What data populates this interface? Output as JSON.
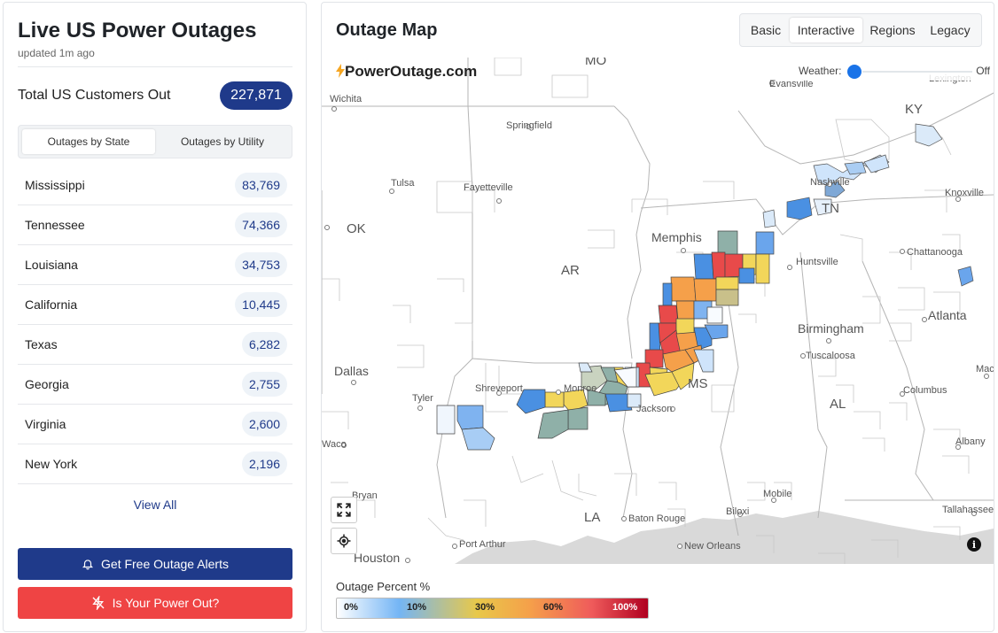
{
  "sidebar": {
    "title": "Live US Power Outages",
    "updated": "updated 1m ago",
    "total_label": "Total US Customers Out",
    "total_value": "227,871",
    "tabs": [
      {
        "label": "Outages by State",
        "active": true
      },
      {
        "label": "Outages by Utility",
        "active": false
      }
    ],
    "states": [
      {
        "name": "Mississippi",
        "count": "83,769"
      },
      {
        "name": "Tennessee",
        "count": "74,366"
      },
      {
        "name": "Louisiana",
        "count": "34,753"
      },
      {
        "name": "California",
        "count": "10,445"
      },
      {
        "name": "Texas",
        "count": "6,282"
      },
      {
        "name": "Georgia",
        "count": "2,755"
      },
      {
        "name": "Virginia",
        "count": "2,600"
      },
      {
        "name": "New York",
        "count": "2,196"
      }
    ],
    "view_all": "View All",
    "alerts_button": "Get Free Outage Alerts",
    "power_out_button": "Is Your Power Out?"
  },
  "map": {
    "title": "Outage Map",
    "modes": [
      {
        "label": "Basic",
        "active": false
      },
      {
        "label": "Interactive",
        "active": true
      },
      {
        "label": "Regions",
        "active": false
      },
      {
        "label": "Legacy",
        "active": false
      }
    ],
    "logo": "PowerOutage.com",
    "weather_label": "Weather:",
    "weather_state": "Off",
    "state_labels": {
      "mo": "MO",
      "ky": "KY",
      "ok": "OK",
      "ar": "AR",
      "tn": "TN",
      "ms": "MS",
      "al": "AL",
      "la": "LA"
    },
    "city_labels": {
      "wichita": "Wichita",
      "springfield": "Springfield",
      "evansville": "Evansville",
      "lexington": "Lexington",
      "tulsa": "Tulsa",
      "fayetteville": "Fayetteville",
      "nashville": "Nashville",
      "knoxville": "Knoxville",
      "memphis": "Memphis",
      "huntsville": "Huntsville",
      "chattanooga": "Chattanooga",
      "atlanta": "Atlanta",
      "birmingham": "Birmingham",
      "tuscaloosa": "Tuscaloosa",
      "dallas": "Dallas",
      "shreveport": "Shreveport",
      "tyler": "Tyler",
      "monroe": "Monroe",
      "jackson": "Jackson",
      "columbus": "Columbus",
      "macon": "Mac",
      "albany": "Albany",
      "waco": "Waco",
      "bryan": "Bryan",
      "mobile": "Mobile",
      "biloxi": "Biloxi",
      "tallahassee": "Tallahassee",
      "baton_rouge": "Baton Rouge",
      "port_arthur": "Port Arthur",
      "new_orleans": "New Orleans",
      "houston": "Houston"
    },
    "legend_title": "Outage Percent %",
    "legend_ticks": [
      "0%",
      "10%",
      "30%",
      "60%",
      "100%"
    ]
  },
  "colors": {
    "navy": "#1f3a8a",
    "red": "#ef4444",
    "outage_low": "#7fb3f0",
    "outage_mid": "#f2d65a",
    "outage_orange": "#f5a04a",
    "outage_high": "#e84a4a",
    "outage_gray": "#8fb0a8"
  },
  "icons": {
    "alerts": "bell-icon",
    "power_out": "power-off-icon",
    "fullscreen": "expand-icon",
    "locate": "crosshair-icon",
    "info": "info-icon",
    "logo_bolt": "bolt-icon"
  }
}
